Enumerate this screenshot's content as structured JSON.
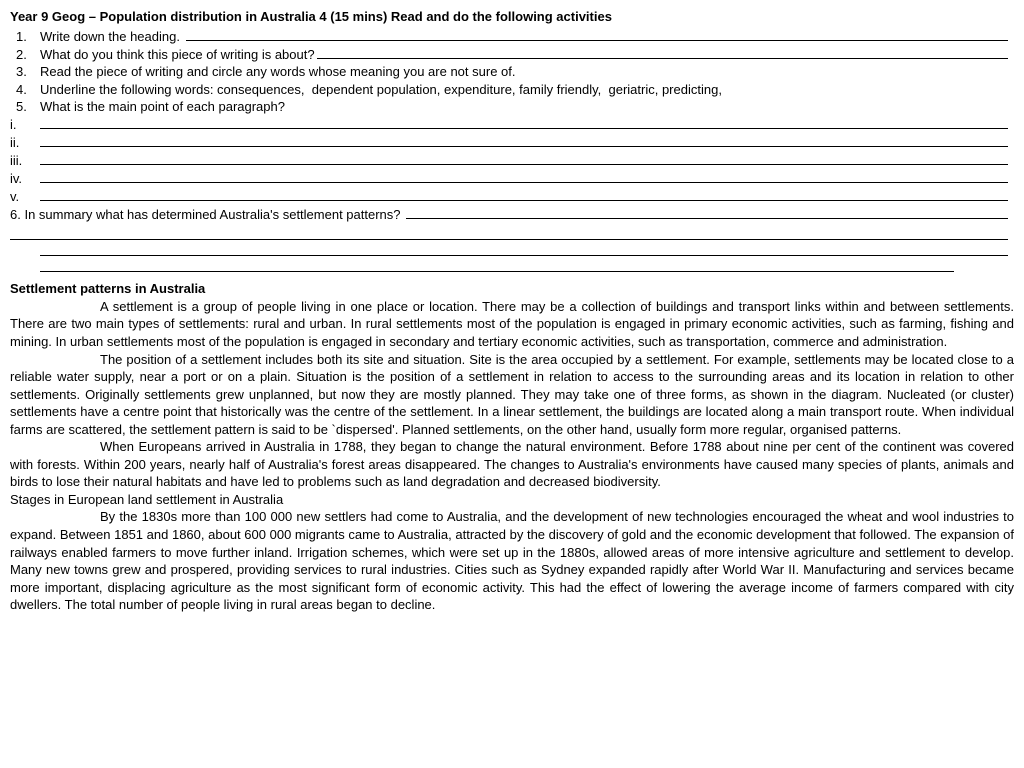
{
  "title": "Year 9 Geog – Population distribution in Australia 4 (15 mins) Read and do the following activities",
  "q": {
    "n1": "1.",
    "t1": "Write down the heading. ",
    "n2": "2.",
    "t2": "What do you think this piece of writing is about?",
    "n3": "3.",
    "t3": "Read the piece of writing and circle any words whose meaning you are not sure of.",
    "n4": "4.",
    "t4": "Underline the following words: consequences,  dependent population, expenditure, family friendly,  geriatric, predicting,",
    "n5": "5.",
    "t5": "What is the main point of each paragraph?"
  },
  "roman": {
    "i": "i.",
    "ii": "ii.",
    "iii": "iii.",
    "iv": "iv.",
    "v": "v."
  },
  "q6": "6. In summary what has determined Australia's settlement patterns? ",
  "h1": "Settlement patterns in Australia",
  "p1": "A settlement is a group of people living in one place or location. There may be a collection of buildings and transport links within and between settlements. There are two main types of settlements: rural and urban. In rural settlements most of the population is engaged in primary economic activities, such as farming, fishing and mining. In urban settlements most of the population is engaged in secondary and tertiary economic activities, such as transportation, commerce and administration.",
  "p2": "The position of a settlement includes both its site and situation. Site is the area occupied by a settlement. For example, settlements may be located close to a reliable water supply, near a port or on a plain. Situation is the position of a settlement in relation to access to the surrounding areas and its location in relation to other settlements. Originally settlements grew unplanned, but now they are mostly planned. They may take one of three forms, as shown in the diagram. Nucleated (or cluster) settlements have a centre point that historically was the centre of the settlement. In a linear settlement, the buildings are located along a main transport route. When individual farms are scattered, the settlement pattern is said to be `dispersed'. Planned settlements, on the other hand, usually form more regular, organised patterns.",
  "p3": "When Europeans arrived in Australia in 1788, they began to change the natural environment. Before 1788 about nine per cent of the continent was covered with forests. Within 200 years, nearly half of Australia's forest areas disappeared. The changes to Australia's environments have caused many species of plants, animals and birds to lose their natural habitats and have led to problems such as land degradation and decreased biodiversity.",
  "h2": "Stages in European land settlement in Australia",
  "p4": "By the 1830s more than 100 000 new settlers had come to Australia, and the development of new technologies encouraged the wheat and wool industries to expand. Between 1851 and 1860, about 600 000 migrants came to Australia, attracted by the discovery of gold and the economic development that followed. The expansion of railways enabled farmers to move further inland. Irrigation schemes, which were set up in the 1880s, allowed areas of more intensive agriculture and settlement to develop. Many new towns grew and prospered, providing services to rural industries. Cities such as Sydney expanded rapidly after World War II. Manufacturing and services became more important, displacing agriculture as the most significant form of economic activity. This had the effect of lowering the average income of farmers compared with city dwellers. The total number of people living in rural areas began to decline."
}
